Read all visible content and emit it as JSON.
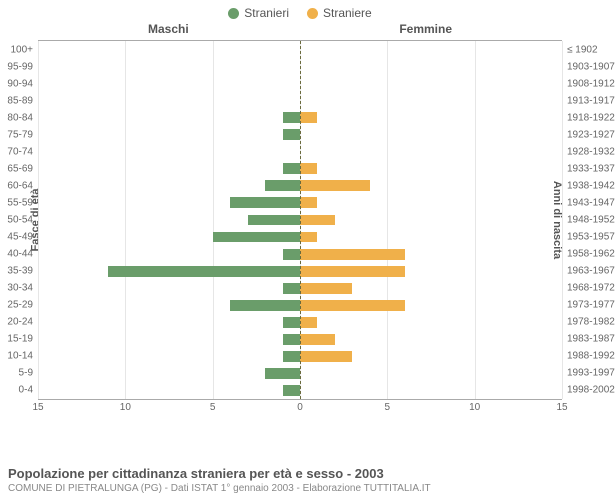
{
  "legend": {
    "male_label": "Stranieri",
    "female_label": "Straniere"
  },
  "header": {
    "left": "Maschi",
    "right": "Femmine"
  },
  "axis": {
    "left_title": "Fasce di età",
    "right_title": "Anni di nascita"
  },
  "chart": {
    "type": "population-pyramid",
    "xmax": 15,
    "xticks": [
      15,
      10,
      5,
      0,
      5,
      10,
      15
    ],
    "male_color": "#6a9d6a",
    "female_color": "#f0b04a",
    "grid_color": "#e6e6e6",
    "zero_line_color": "#6b6b3d",
    "rows": [
      {
        "age": "100+",
        "years": "≤ 1902",
        "m": 0,
        "f": 0
      },
      {
        "age": "95-99",
        "years": "1903-1907",
        "m": 0,
        "f": 0
      },
      {
        "age": "90-94",
        "years": "1908-1912",
        "m": 0,
        "f": 0
      },
      {
        "age": "85-89",
        "years": "1913-1917",
        "m": 0,
        "f": 0
      },
      {
        "age": "80-84",
        "years": "1918-1922",
        "m": 1,
        "f": 1
      },
      {
        "age": "75-79",
        "years": "1923-1927",
        "m": 1,
        "f": 0
      },
      {
        "age": "70-74",
        "years": "1928-1932",
        "m": 0,
        "f": 0
      },
      {
        "age": "65-69",
        "years": "1933-1937",
        "m": 1,
        "f": 1
      },
      {
        "age": "60-64",
        "years": "1938-1942",
        "m": 2,
        "f": 4
      },
      {
        "age": "55-59",
        "years": "1943-1947",
        "m": 4,
        "f": 1
      },
      {
        "age": "50-54",
        "years": "1948-1952",
        "m": 3,
        "f": 2
      },
      {
        "age": "45-49",
        "years": "1953-1957",
        "m": 5,
        "f": 1
      },
      {
        "age": "40-44",
        "years": "1958-1962",
        "m": 1,
        "f": 6
      },
      {
        "age": "35-39",
        "years": "1963-1967",
        "m": 11,
        "f": 6
      },
      {
        "age": "30-34",
        "years": "1968-1972",
        "m": 1,
        "f": 3
      },
      {
        "age": "25-29",
        "years": "1973-1977",
        "m": 4,
        "f": 6
      },
      {
        "age": "20-24",
        "years": "1978-1982",
        "m": 1,
        "f": 1
      },
      {
        "age": "15-19",
        "years": "1983-1987",
        "m": 1,
        "f": 2
      },
      {
        "age": "10-14",
        "years": "1988-1992",
        "m": 1,
        "f": 3
      },
      {
        "age": "5-9",
        "years": "1993-1997",
        "m": 2,
        "f": 0
      },
      {
        "age": "0-4",
        "years": "1998-2002",
        "m": 1,
        "f": 0
      }
    ]
  },
  "footer": {
    "title": "Popolazione per cittadinanza straniera per età e sesso - 2003",
    "subtitle": "COMUNE DI PIETRALUNGA (PG) - Dati ISTAT 1° gennaio 2003 - Elaborazione TUTTITALIA.IT"
  }
}
